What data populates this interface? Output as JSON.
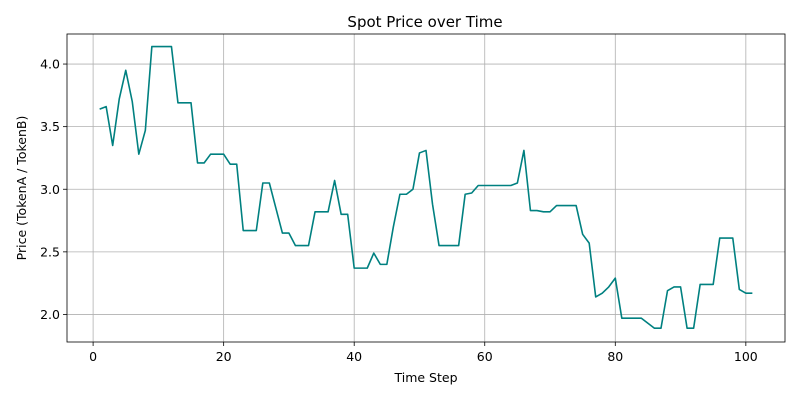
{
  "chart_data": {
    "type": "line",
    "title": "Spot Price over Time",
    "xlabel": "Time Step",
    "ylabel": "Price (TokenA / TokenB)",
    "xlim": [
      -4,
      106
    ],
    "ylim": [
      1.78,
      4.24
    ],
    "xticks": [
      0,
      20,
      40,
      60,
      80,
      100
    ],
    "xtick_labels": [
      "0",
      "20",
      "40",
      "60",
      "80",
      "100"
    ],
    "yticks": [
      2.0,
      2.5,
      3.0,
      3.5,
      4.0
    ],
    "ytick_labels": [
      "2.0",
      "2.5",
      "3.0",
      "3.5",
      "4.0"
    ],
    "grid": true,
    "line_color": "#008080",
    "series": [
      {
        "x": [
          1,
          2,
          3,
          4,
          5,
          6,
          7,
          8,
          9,
          10,
          11,
          12,
          13,
          14,
          15,
          16,
          17,
          18,
          19,
          20,
          21,
          22,
          23,
          24,
          25,
          26,
          27,
          28,
          29,
          30,
          31,
          32,
          33,
          34,
          35,
          36,
          37,
          38,
          39,
          40,
          41,
          42,
          43,
          44,
          45,
          46,
          47,
          48,
          49,
          50,
          51,
          52,
          53,
          54,
          55,
          56,
          57,
          58,
          59,
          60,
          61,
          62,
          63,
          64,
          65,
          66,
          67,
          68,
          69,
          70,
          71,
          72,
          73,
          74,
          75,
          76,
          77,
          78,
          79,
          80,
          81,
          82,
          83,
          84,
          85,
          86,
          87,
          88,
          89,
          90,
          91,
          92,
          93,
          94,
          95,
          96,
          97,
          98,
          99,
          100,
          101
        ],
        "values": [
          3.64,
          3.66,
          3.35,
          3.72,
          3.95,
          3.7,
          3.28,
          3.47,
          4.14,
          4.14,
          4.14,
          4.14,
          3.69,
          3.69,
          3.69,
          3.21,
          3.21,
          3.28,
          3.28,
          3.28,
          3.2,
          3.2,
          2.67,
          2.67,
          2.67,
          3.05,
          3.05,
          2.85,
          2.65,
          2.65,
          2.55,
          2.55,
          2.55,
          2.82,
          2.82,
          2.82,
          3.07,
          2.8,
          2.8,
          2.37,
          2.37,
          2.37,
          2.49,
          2.4,
          2.4,
          2.7,
          2.96,
          2.96,
          3.0,
          3.29,
          3.31,
          2.88,
          2.55,
          2.55,
          2.55,
          2.55,
          2.96,
          2.97,
          3.03,
          3.03,
          3.03,
          3.03,
          3.03,
          3.03,
          3.05,
          3.31,
          2.83,
          2.83,
          2.82,
          2.82,
          2.87,
          2.87,
          2.87,
          2.87,
          2.64,
          2.57,
          2.14,
          2.17,
          2.22,
          2.29,
          1.97,
          1.97,
          1.97,
          1.97,
          1.93,
          1.89,
          1.89,
          2.19,
          2.22,
          2.22,
          1.89,
          1.89,
          2.24,
          2.24,
          2.24,
          2.61,
          2.61,
          2.61,
          2.2,
          2.17,
          2.17
        ]
      }
    ]
  }
}
